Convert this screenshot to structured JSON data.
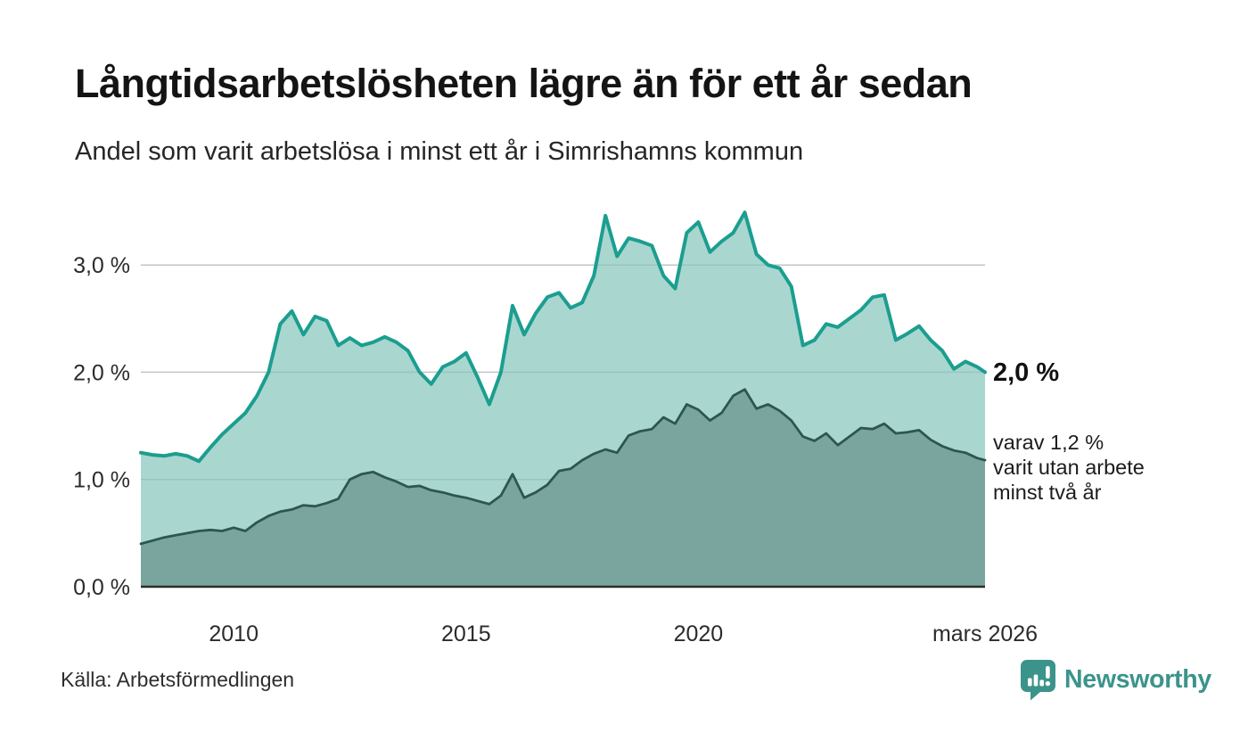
{
  "header": {
    "title": "Långtidsarbetslösheten lägre än för ett år sedan",
    "subtitle": "Andel som varit arbetslösa i minst ett år i Simrishamns kommun"
  },
  "annotations": {
    "end_total": "2,0 %",
    "end_sub_lines": [
      "varav 1,2 %",
      "varit utan arbete",
      "minst två år"
    ]
  },
  "footer": {
    "source": "Källa: Arbetsförmedlingen",
    "brand": "Newsworthy"
  },
  "colors": {
    "line_total": "#1b9e8f",
    "fill_total": "#a9d7d0",
    "line_subset": "#2e5650",
    "fill_subset": "#7aa59e",
    "gridline": "#d7d7d7",
    "axis": "#2d2d2d",
    "label": "#2b2b2b",
    "brand_teal": "#3b948b"
  },
  "chart_data": {
    "type": "area",
    "title": "Långtidsarbetslösheten lägre än för ett år sedan",
    "subtitle": "Andel som varit arbetslösa i minst ett år i Simrishamns kommun",
    "grid": true,
    "legend": "none",
    "ylim": [
      0,
      3.6
    ],
    "y_ticks": [
      {
        "v": 0,
        "label": "0,0 %"
      },
      {
        "v": 1,
        "label": "1,0 %"
      },
      {
        "v": 2,
        "label": "2,0 %"
      },
      {
        "v": 3,
        "label": "3,0 %"
      }
    ],
    "x_ticks": [
      {
        "v": 2010,
        "label": "2010"
      },
      {
        "v": 2015,
        "label": "2015"
      },
      {
        "v": 2020,
        "label": "2020"
      },
      {
        "v": 2026.17,
        "label": "mars 2026"
      }
    ],
    "x": [
      2008.0,
      2008.25,
      2008.5,
      2008.75,
      2009.0,
      2009.25,
      2009.5,
      2009.75,
      2010.0,
      2010.25,
      2010.5,
      2010.75,
      2011.0,
      2011.25,
      2011.5,
      2011.75,
      2012.0,
      2012.25,
      2012.5,
      2012.75,
      2013.0,
      2013.25,
      2013.5,
      2013.75,
      2014.0,
      2014.25,
      2014.5,
      2014.75,
      2015.0,
      2015.25,
      2015.5,
      2015.75,
      2016.0,
      2016.25,
      2016.5,
      2016.75,
      2017.0,
      2017.25,
      2017.5,
      2017.75,
      2018.0,
      2018.25,
      2018.5,
      2018.75,
      2019.0,
      2019.25,
      2019.5,
      2019.75,
      2020.0,
      2020.25,
      2020.5,
      2020.75,
      2021.0,
      2021.25,
      2021.5,
      2021.75,
      2022.0,
      2022.25,
      2022.5,
      2022.75,
      2023.0,
      2023.25,
      2023.5,
      2023.75,
      2024.0,
      2024.25,
      2024.5,
      2024.75,
      2025.0,
      2025.25,
      2025.5,
      2025.75,
      2026.0,
      2026.17
    ],
    "series": [
      {
        "name": "Arbetslösa minst ett år",
        "end_value_label": "2,0 %",
        "stroke": "#1b9e8f",
        "fill": "#a9d7d0",
        "values": [
          1.25,
          1.23,
          1.22,
          1.24,
          1.22,
          1.17,
          1.3,
          1.42,
          1.52,
          1.62,
          1.78,
          2.0,
          2.45,
          2.57,
          2.35,
          2.52,
          2.48,
          2.25,
          2.32,
          2.25,
          2.28,
          2.33,
          2.28,
          2.2,
          2.0,
          1.89,
          2.05,
          2.1,
          2.18,
          1.95,
          1.7,
          2.0,
          2.62,
          2.35,
          2.55,
          2.7,
          2.74,
          2.6,
          2.65,
          2.9,
          3.46,
          3.08,
          3.25,
          3.22,
          3.18,
          2.9,
          2.78,
          3.3,
          3.4,
          3.12,
          3.22,
          3.3,
          3.49,
          3.1,
          3.0,
          2.97,
          2.8,
          2.25,
          2.3,
          2.45,
          2.42,
          2.5,
          2.58,
          2.7,
          2.72,
          2.3,
          2.36,
          2.43,
          2.3,
          2.2,
          2.03,
          2.1,
          2.05,
          2.0
        ]
      },
      {
        "name": "Varav arbetslösa minst två år",
        "end_value_label": "1,2 %",
        "stroke": "#2e5650",
        "fill": "#7aa59e",
        "values": [
          0.4,
          0.43,
          0.46,
          0.48,
          0.5,
          0.52,
          0.53,
          0.52,
          0.55,
          0.52,
          0.6,
          0.66,
          0.7,
          0.72,
          0.76,
          0.75,
          0.78,
          0.82,
          1.0,
          1.05,
          1.07,
          1.02,
          0.98,
          0.93,
          0.94,
          0.9,
          0.88,
          0.85,
          0.83,
          0.8,
          0.77,
          0.85,
          1.05,
          0.83,
          0.88,
          0.95,
          1.08,
          1.1,
          1.18,
          1.24,
          1.28,
          1.25,
          1.41,
          1.45,
          1.47,
          1.58,
          1.52,
          1.7,
          1.65,
          1.55,
          1.62,
          1.78,
          1.84,
          1.66,
          1.7,
          1.64,
          1.55,
          1.4,
          1.36,
          1.43,
          1.32,
          1.4,
          1.48,
          1.47,
          1.52,
          1.43,
          1.44,
          1.46,
          1.37,
          1.31,
          1.27,
          1.25,
          1.2,
          1.18
        ]
      }
    ]
  }
}
